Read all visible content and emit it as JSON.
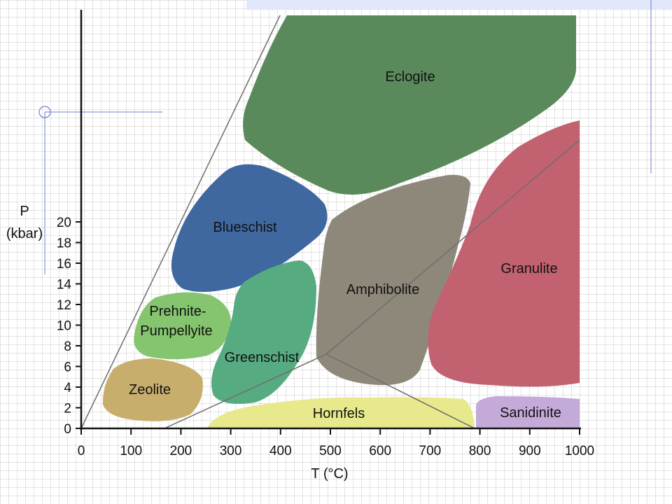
{
  "y_axis": {
    "title_line1": "P",
    "title_line2": "(kbar)",
    "ticks": [
      "0",
      "2",
      "4",
      "6",
      "8",
      "10",
      "12",
      "14",
      "16",
      "18",
      "20"
    ]
  },
  "x_axis": {
    "title": "T (°C)",
    "ticks": [
      "0",
      "100",
      "200",
      "300",
      "400",
      "500",
      "600",
      "700",
      "800",
      "900",
      "1000"
    ]
  },
  "facies": {
    "eclogite": {
      "label": "Eclogite",
      "color": "#5a8a5b"
    },
    "blueschist": {
      "label": "Blueschist",
      "color": "#3f67a0"
    },
    "prehnite": {
      "label_line1": "Prehnite-",
      "label_line2": "Pumpellyite",
      "color": "#86c56f"
    },
    "zeolite": {
      "label": "Zeolite",
      "color": "#c8ae6c"
    },
    "greenschist": {
      "label": "Greenschist",
      "color": "#57ab80"
    },
    "amphibolite": {
      "label": "Amphibolite",
      "color": "#8e887a"
    },
    "granulite": {
      "label": "Granulite",
      "color": "#c26270"
    },
    "hornfels": {
      "label": "Hornfels",
      "color": "#e7e98c"
    },
    "sanidinite": {
      "label": "Sanidinite",
      "color": "#c4aad8"
    }
  }
}
